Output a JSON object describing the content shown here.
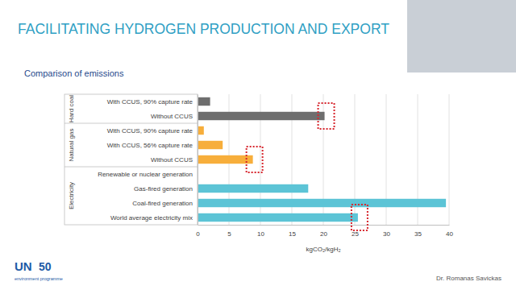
{
  "slide": {
    "title": "FACILITATING HYDROGEN PRODUCTION AND EXPORT",
    "logo_mark": "UN",
    "logo_year": "50",
    "logo_text": "environment programme",
    "author": "Dr. Romanas Savickas"
  },
  "chart_data": {
    "type": "bar",
    "orientation": "horizontal",
    "title": "Comparison of emissions",
    "xlabel": "kgCO₂/kgH₂",
    "categories": [
      "With CCUS, 90% capture rate",
      "Without CCUS",
      "With CCUS, 90% capture rate",
      "With CCUS, 56% capture rate",
      "Without CCUS",
      "Renewable or nuclear generation",
      "Gas-fired generation",
      "Coal-fired generation",
      "World average electricity mix"
    ],
    "values": [
      2.0,
      20.2,
      1.0,
      4.0,
      8.8,
      0,
      17.6,
      39.5,
      25.5
    ],
    "colors": [
      "#6e6e6e",
      "#6e6e6e",
      "#f7ae3b",
      "#f7ae3b",
      "#f7ae3b",
      "#5cc4d6",
      "#5cc4d6",
      "#5cc4d6",
      "#5cc4d6"
    ],
    "groups": [
      {
        "name": "Hard coal",
        "count": 2
      },
      {
        "name": "Natural gas",
        "count": 3
      },
      {
        "name": "Electricity",
        "count": 4
      }
    ],
    "highlighted": [
      1,
      4,
      8
    ],
    "xlim": [
      0,
      40
    ],
    "xticks": [
      0,
      5,
      10,
      15,
      20,
      25,
      30,
      35,
      40
    ],
    "grid": true
  }
}
